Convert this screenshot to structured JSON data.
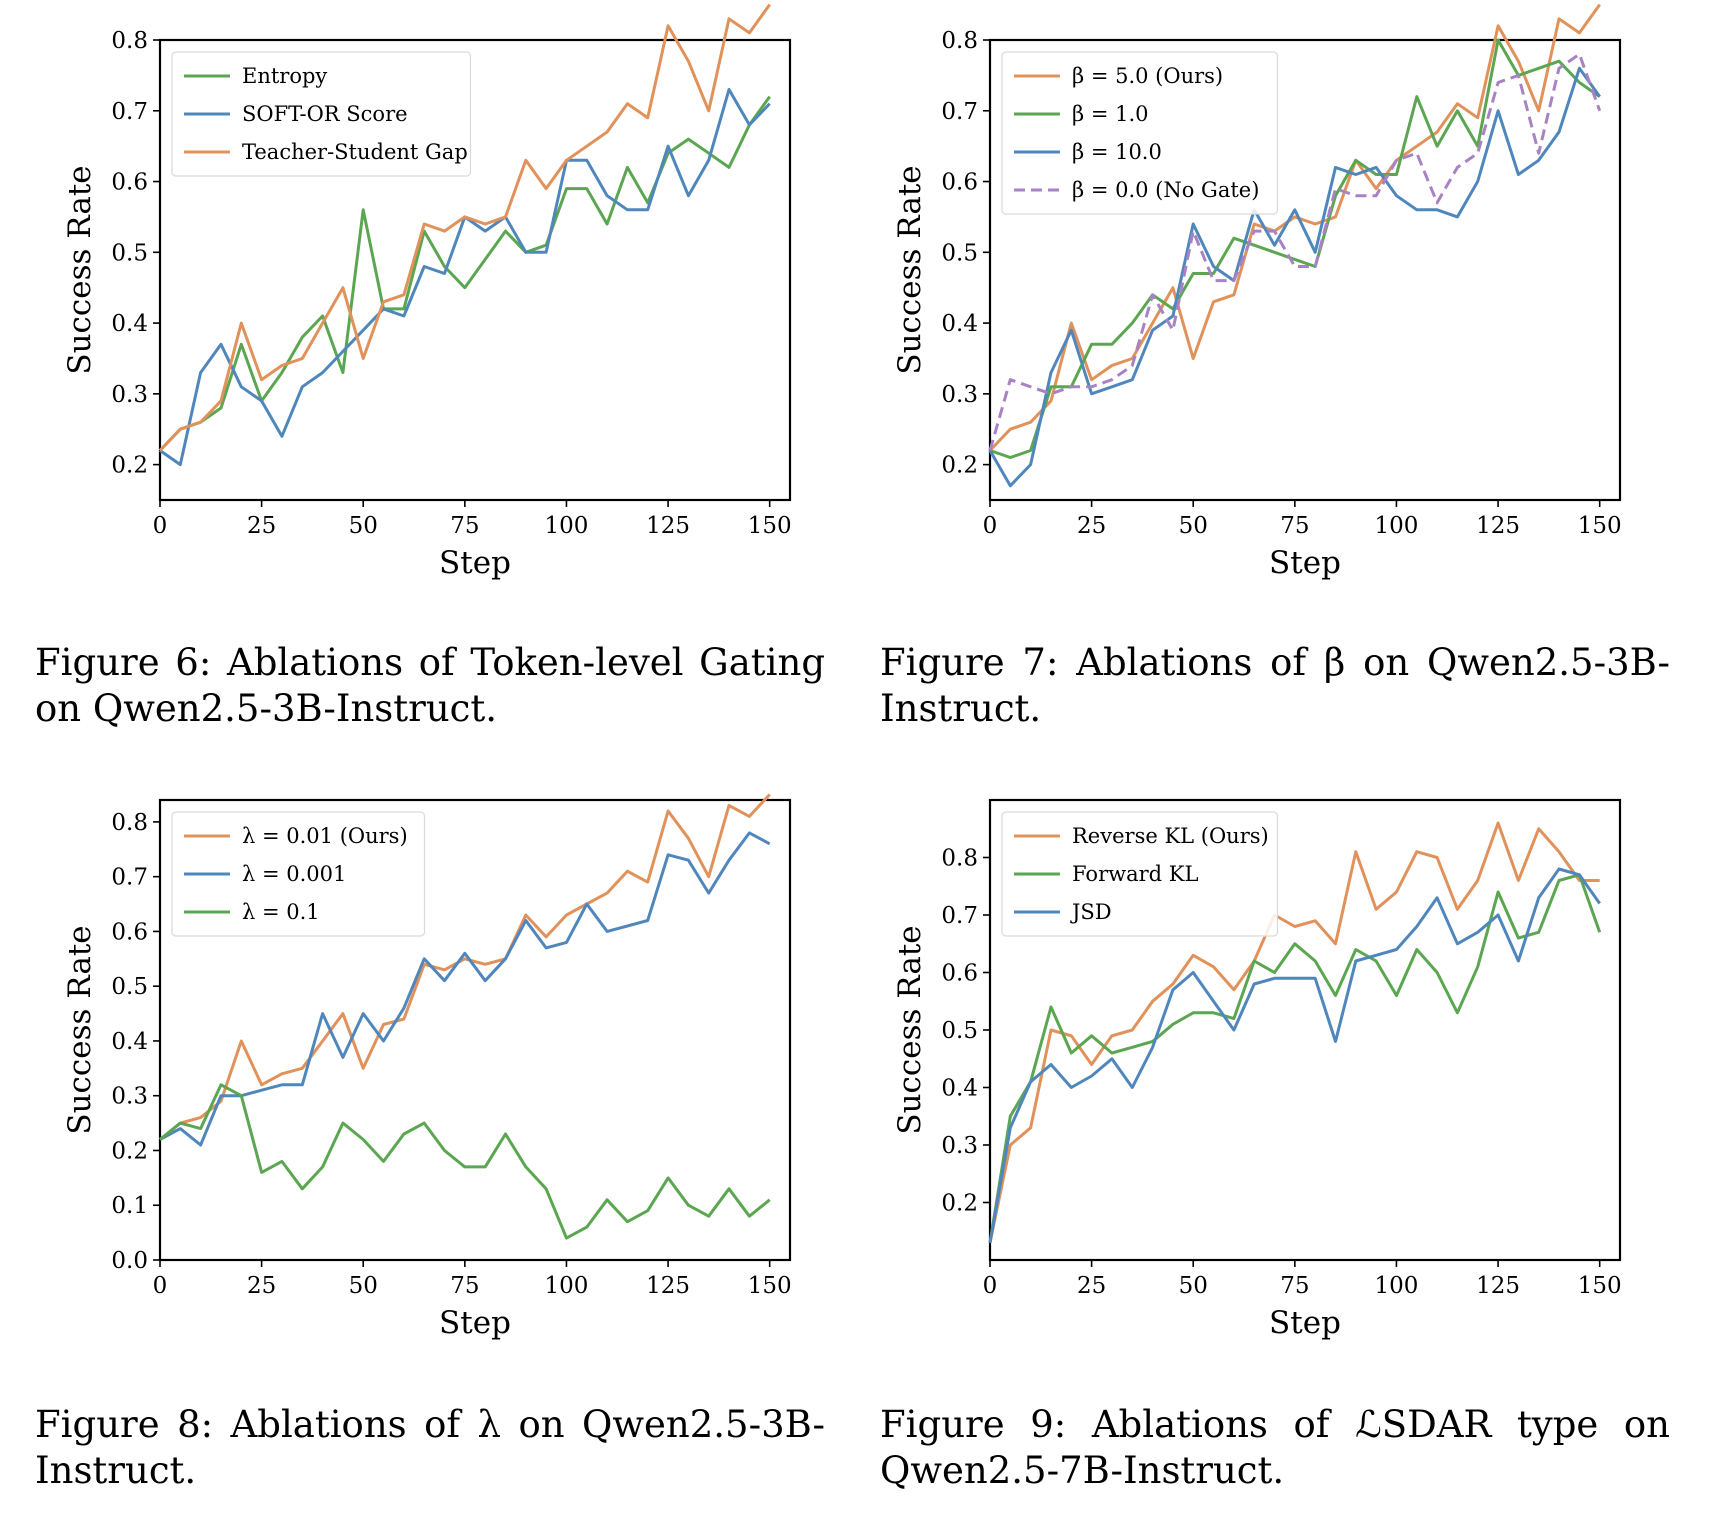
{
  "figures": [
    {
      "label": "Figure 6:",
      "text": "Ablations of Token-level Gating on Qwen2.5-3B-Instruct."
    },
    {
      "label": "Figure 7:",
      "text": "Ablations of β on Qwen2.5-3B-Instruct."
    },
    {
      "label": "Figure 8:",
      "text": "Ablations of λ on Qwen2.5-3B-Instruct."
    },
    {
      "label": "Figure 9:",
      "text": "Ablations of ℒSDAR type on Qwen2.5-7B-Instruct."
    }
  ],
  "colors": {
    "orange": "#e1915a",
    "green": "#5ba650",
    "blue": "#4f87bd",
    "purple": "#a783c4"
  },
  "chart_data": [
    {
      "type": "line",
      "xlabel": "Step",
      "ylabel": "Success Rate",
      "xlim": [
        0,
        155
      ],
      "ylim": [
        0.15,
        0.8
      ],
      "xticks": [
        0,
        25,
        50,
        75,
        100,
        125,
        150
      ],
      "yticks": [
        0.2,
        0.3,
        0.4,
        0.5,
        0.6,
        0.7,
        0.8
      ],
      "legend": "top-left",
      "x": [
        0,
        5,
        10,
        15,
        20,
        25,
        30,
        35,
        40,
        45,
        50,
        55,
        60,
        65,
        70,
        75,
        80,
        85,
        90,
        95,
        100,
        105,
        110,
        115,
        120,
        125,
        130,
        135,
        140,
        145,
        150
      ],
      "series": [
        {
          "name": "Entropy",
          "color": "green",
          "dash": false,
          "values": [
            0.22,
            0.25,
            0.26,
            0.28,
            0.37,
            0.29,
            0.33,
            0.38,
            0.41,
            0.33,
            0.56,
            0.42,
            0.42,
            0.53,
            0.48,
            0.45,
            0.49,
            0.53,
            0.5,
            0.51,
            0.59,
            0.59,
            0.54,
            0.62,
            0.57,
            0.64,
            0.66,
            0.64,
            0.62,
            0.68,
            0.72
          ]
        },
        {
          "name": "SOFT-OR Score",
          "color": "blue",
          "dash": false,
          "values": [
            0.22,
            0.2,
            0.33,
            0.37,
            0.31,
            0.29,
            0.24,
            0.31,
            0.33,
            0.36,
            0.39,
            0.42,
            0.41,
            0.48,
            0.47,
            0.55,
            0.53,
            0.55,
            0.5,
            0.5,
            0.63,
            0.63,
            0.58,
            0.56,
            0.56,
            0.65,
            0.58,
            0.63,
            0.73,
            0.68,
            0.71
          ]
        },
        {
          "name": "Teacher-Student Gap",
          "color": "orange",
          "dash": false,
          "values": [
            0.22,
            0.25,
            0.26,
            0.29,
            0.4,
            0.32,
            0.34,
            0.35,
            0.4,
            0.45,
            0.35,
            0.43,
            0.44,
            0.54,
            0.53,
            0.55,
            0.54,
            0.55,
            0.63,
            0.59,
            0.63,
            0.65,
            0.67,
            0.71,
            0.69,
            0.82,
            0.77,
            0.7,
            0.83,
            0.81,
            0.85
          ]
        }
      ]
    },
    {
      "type": "line",
      "xlabel": "Step",
      "ylabel": "Success Rate",
      "xlim": [
        0,
        155
      ],
      "ylim": [
        0.15,
        0.8
      ],
      "xticks": [
        0,
        25,
        50,
        75,
        100,
        125,
        150
      ],
      "yticks": [
        0.2,
        0.3,
        0.4,
        0.5,
        0.6,
        0.7,
        0.8
      ],
      "legend": "top-left",
      "x": [
        0,
        5,
        10,
        15,
        20,
        25,
        30,
        35,
        40,
        45,
        50,
        55,
        60,
        65,
        70,
        75,
        80,
        85,
        90,
        95,
        100,
        105,
        110,
        115,
        120,
        125,
        130,
        135,
        140,
        145,
        150
      ],
      "series": [
        {
          "name": "β = 5.0 (Ours)",
          "color": "orange",
          "dash": false,
          "values": [
            0.22,
            0.25,
            0.26,
            0.29,
            0.4,
            0.32,
            0.34,
            0.35,
            0.4,
            0.45,
            0.35,
            0.43,
            0.44,
            0.54,
            0.53,
            0.55,
            0.54,
            0.55,
            0.63,
            0.59,
            0.63,
            0.65,
            0.67,
            0.71,
            0.69,
            0.82,
            0.77,
            0.7,
            0.83,
            0.81,
            0.85
          ]
        },
        {
          "name": "β = 1.0",
          "color": "green",
          "dash": false,
          "values": [
            0.22,
            0.21,
            0.22,
            0.31,
            0.31,
            0.37,
            0.37,
            0.4,
            0.44,
            0.42,
            0.47,
            0.47,
            0.52,
            0.51,
            0.5,
            0.49,
            0.48,
            0.58,
            0.63,
            0.61,
            0.61,
            0.72,
            0.65,
            0.7,
            0.65,
            0.8,
            0.75,
            0.76,
            0.77,
            0.74,
            0.72
          ]
        },
        {
          "name": "β = 10.0",
          "color": "blue",
          "dash": false,
          "values": [
            0.22,
            0.17,
            0.2,
            0.33,
            0.39,
            0.3,
            0.31,
            0.32,
            0.39,
            0.41,
            0.54,
            0.48,
            0.46,
            0.56,
            0.51,
            0.56,
            0.5,
            0.62,
            0.61,
            0.62,
            0.58,
            0.56,
            0.56,
            0.55,
            0.6,
            0.7,
            0.61,
            0.63,
            0.67,
            0.76,
            0.72
          ]
        },
        {
          "name": "β = 0.0 (No Gate)",
          "color": "purple",
          "dash": true,
          "values": [
            0.22,
            0.32,
            0.31,
            0.3,
            0.31,
            0.31,
            0.32,
            0.34,
            0.44,
            0.39,
            0.53,
            0.46,
            0.46,
            0.53,
            0.53,
            0.48,
            0.48,
            0.59,
            0.58,
            0.58,
            0.63,
            0.64,
            0.57,
            0.62,
            0.64,
            0.74,
            0.75,
            0.64,
            0.76,
            0.78,
            0.7
          ]
        }
      ]
    },
    {
      "type": "line",
      "xlabel": "Step",
      "ylabel": "Success Rate",
      "xlim": [
        0,
        155
      ],
      "ylim": [
        0.0,
        0.84
      ],
      "xticks": [
        0,
        25,
        50,
        75,
        100,
        125,
        150
      ],
      "yticks": [
        0.0,
        0.1,
        0.2,
        0.3,
        0.4,
        0.5,
        0.6,
        0.7,
        0.8
      ],
      "legend": "top-left",
      "x": [
        0,
        5,
        10,
        15,
        20,
        25,
        30,
        35,
        40,
        45,
        50,
        55,
        60,
        65,
        70,
        75,
        80,
        85,
        90,
        95,
        100,
        105,
        110,
        115,
        120,
        125,
        130,
        135,
        140,
        145,
        150
      ],
      "series": [
        {
          "name": "λ = 0.01 (Ours)",
          "color": "orange",
          "dash": false,
          "values": [
            0.22,
            0.25,
            0.26,
            0.29,
            0.4,
            0.32,
            0.34,
            0.35,
            0.4,
            0.45,
            0.35,
            0.43,
            0.44,
            0.54,
            0.53,
            0.55,
            0.54,
            0.55,
            0.63,
            0.59,
            0.63,
            0.65,
            0.67,
            0.71,
            0.69,
            0.82,
            0.77,
            0.7,
            0.83,
            0.81,
            0.85
          ]
        },
        {
          "name": "λ = 0.001",
          "color": "blue",
          "dash": false,
          "values": [
            0.22,
            0.24,
            0.21,
            0.3,
            0.3,
            0.31,
            0.32,
            0.32,
            0.45,
            0.37,
            0.45,
            0.4,
            0.46,
            0.55,
            0.51,
            0.56,
            0.51,
            0.55,
            0.62,
            0.57,
            0.58,
            0.65,
            0.6,
            0.61,
            0.62,
            0.74,
            0.73,
            0.67,
            0.73,
            0.78,
            0.76
          ]
        },
        {
          "name": "λ = 0.1",
          "color": "green",
          "dash": false,
          "values": [
            0.22,
            0.25,
            0.24,
            0.32,
            0.3,
            0.16,
            0.18,
            0.13,
            0.17,
            0.25,
            0.22,
            0.18,
            0.23,
            0.25,
            0.2,
            0.17,
            0.17,
            0.23,
            0.17,
            0.13,
            0.04,
            0.06,
            0.11,
            0.07,
            0.09,
            0.15,
            0.1,
            0.08,
            0.13,
            0.08,
            0.11
          ]
        }
      ]
    },
    {
      "type": "line",
      "xlabel": "Step",
      "ylabel": "Success Rate",
      "xlim": [
        0,
        155
      ],
      "ylim": [
        0.1,
        0.9
      ],
      "xticks": [
        0,
        25,
        50,
        75,
        100,
        125,
        150
      ],
      "yticks": [
        0.2,
        0.3,
        0.4,
        0.5,
        0.6,
        0.7,
        0.8
      ],
      "legend": "top-left",
      "x": [
        0,
        5,
        10,
        15,
        20,
        25,
        30,
        35,
        40,
        45,
        50,
        55,
        60,
        65,
        70,
        75,
        80,
        85,
        90,
        95,
        100,
        105,
        110,
        115,
        120,
        125,
        130,
        135,
        140,
        145,
        150
      ],
      "series": [
        {
          "name": "Reverse KL (Ours)",
          "color": "orange",
          "dash": false,
          "values": [
            0.13,
            0.3,
            0.33,
            0.5,
            0.49,
            0.44,
            0.49,
            0.5,
            0.55,
            0.58,
            0.63,
            0.61,
            0.57,
            0.62,
            0.7,
            0.68,
            0.69,
            0.65,
            0.81,
            0.71,
            0.74,
            0.81,
            0.8,
            0.71,
            0.76,
            0.86,
            0.76,
            0.85,
            0.81,
            0.76,
            0.76
          ]
        },
        {
          "name": "Forward KL",
          "color": "green",
          "dash": false,
          "values": [
            0.13,
            0.35,
            0.41,
            0.54,
            0.46,
            0.49,
            0.46,
            0.47,
            0.48,
            0.51,
            0.53,
            0.53,
            0.52,
            0.62,
            0.6,
            0.65,
            0.62,
            0.56,
            0.64,
            0.62,
            0.56,
            0.64,
            0.6,
            0.53,
            0.61,
            0.74,
            0.66,
            0.67,
            0.76,
            0.77,
            0.67
          ]
        },
        {
          "name": "JSD",
          "color": "blue",
          "dash": false,
          "values": [
            0.13,
            0.33,
            0.41,
            0.44,
            0.4,
            0.42,
            0.45,
            0.4,
            0.47,
            0.57,
            0.6,
            0.55,
            0.5,
            0.58,
            0.59,
            0.59,
            0.59,
            0.48,
            0.62,
            0.63,
            0.64,
            0.68,
            0.73,
            0.65,
            0.67,
            0.7,
            0.62,
            0.73,
            0.78,
            0.77,
            0.72
          ]
        }
      ]
    }
  ]
}
